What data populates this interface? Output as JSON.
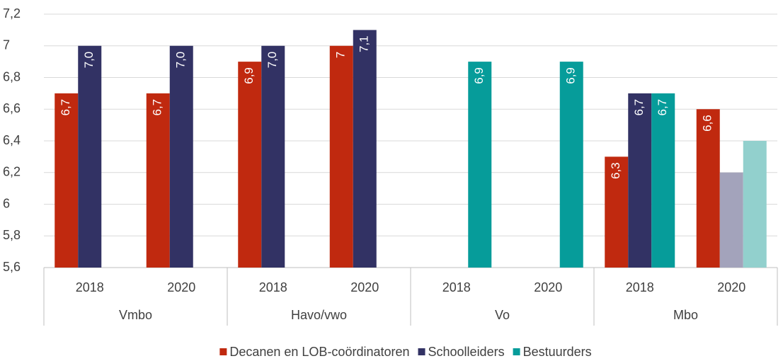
{
  "chart_data": {
    "type": "bar",
    "groups": [
      {
        "name": "Vmbo",
        "categories": [
          "2018",
          "2020"
        ]
      },
      {
        "name": "Havo/vwo",
        "categories": [
          "2018",
          "2020"
        ]
      },
      {
        "name": "Vo",
        "categories": [
          "2018",
          "2020"
        ]
      },
      {
        "name": "Mbo",
        "categories": [
          "2018",
          "2020"
        ]
      }
    ],
    "series": [
      {
        "name": "Decanen en LOB-coördinatoren",
        "color": "#c0290f",
        "values": [
          6.7,
          6.7,
          6.9,
          7,
          null,
          null,
          6.3,
          6.6
        ],
        "value_labels": [
          "6,7",
          "6,7",
          "6,9",
          "7",
          null,
          null,
          "6,3",
          "6,6"
        ],
        "colors": [
          "#c0290f",
          "#c0290f",
          "#c0290f",
          "#c0290f",
          "#c0290f",
          "#c0290f",
          "#c0290f",
          "#c0290f"
        ]
      },
      {
        "name": "Schoolleiders",
        "color": "#323264",
        "values": [
          7.0,
          7.0,
          7.0,
          7.1,
          null,
          null,
          6.7,
          6.2
        ],
        "value_labels": [
          "7,0",
          "7,0",
          "7,0",
          "7,1",
          null,
          null,
          "6,7",
          null
        ],
        "colors": [
          "#323264",
          "#323264",
          "#323264",
          "#323264",
          "#323264",
          "#323264",
          "#323264",
          "#a3a3bb"
        ]
      },
      {
        "name": "Bestuurders",
        "color": "#069c9a",
        "values": [
          null,
          null,
          null,
          null,
          6.9,
          6.9,
          6.7,
          6.4
        ],
        "value_labels": [
          null,
          null,
          null,
          null,
          "6,9",
          "6,9",
          "6,7",
          null
        ],
        "colors": [
          "#069c9a",
          "#069c9a",
          "#069c9a",
          "#069c9a",
          "#069c9a",
          "#069c9a",
          "#069c9a",
          "#92d0cd"
        ]
      }
    ],
    "ylim": [
      5.6,
      7.2
    ],
    "yticks": [
      {
        "value": 5.6,
        "label": "5,6"
      },
      {
        "value": 5.8,
        "label": "5,8"
      },
      6,
      {
        "value": 6.2,
        "label": "6,2"
      },
      {
        "value": 6.4,
        "label": "6,4"
      },
      {
        "value": 6.6,
        "label": "6,6"
      },
      {
        "value": 6.8,
        "label": "6,8"
      },
      7,
      {
        "value": 7.2,
        "label": "7,2"
      }
    ],
    "grid": true,
    "legend": "bottom"
  }
}
